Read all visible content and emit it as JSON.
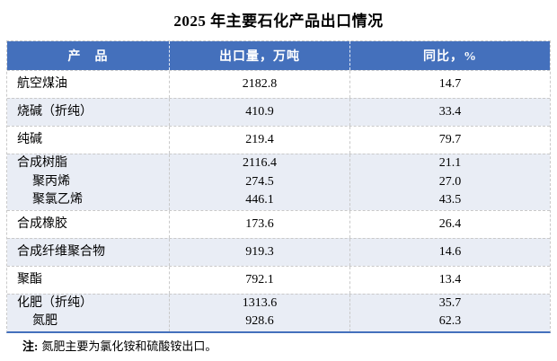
{
  "title": "2025 年主要石化产品出口情况",
  "colors": {
    "header_bg": "#4470BC",
    "header_text": "#FFFFFF",
    "accent_blue": "#4470BC",
    "band_bg": "#E9EDF5",
    "border_gray": "#C9C9C9",
    "body_text": "#000000"
  },
  "table": {
    "headers": [
      "产　品",
      "出口量，万吨",
      "同比，%"
    ],
    "rows": [
      {
        "band": false,
        "lines": [
          {
            "product": "航空煤油",
            "indent": false,
            "volume": "2182.8",
            "yoy": "14.7"
          }
        ]
      },
      {
        "band": true,
        "lines": [
          {
            "product": "烧碱（折纯）",
            "indent": false,
            "volume": "410.9",
            "yoy": "33.4"
          }
        ]
      },
      {
        "band": false,
        "lines": [
          {
            "product": "纯碱",
            "indent": false,
            "volume": "219.4",
            "yoy": "79.7"
          }
        ]
      },
      {
        "band": true,
        "lines": [
          {
            "product": "合成树脂",
            "indent": false,
            "volume": "2116.4",
            "yoy": "21.1"
          },
          {
            "product": "聚丙烯",
            "indent": true,
            "volume": "274.5",
            "yoy": "27.0"
          },
          {
            "product": "聚氯乙烯",
            "indent": true,
            "volume": "446.1",
            "yoy": "43.5"
          }
        ]
      },
      {
        "band": false,
        "lines": [
          {
            "product": "合成橡胶",
            "indent": false,
            "volume": "173.6",
            "yoy": "26.4"
          }
        ]
      },
      {
        "band": true,
        "lines": [
          {
            "product": "合成纤维聚合物",
            "indent": false,
            "volume": "919.3",
            "yoy": "14.6"
          }
        ]
      },
      {
        "band": false,
        "lines": [
          {
            "product": "聚酯",
            "indent": false,
            "volume": "792.1",
            "yoy": "13.4"
          }
        ]
      },
      {
        "band": true,
        "lines": [
          {
            "product": "化肥（折纯）",
            "indent": false,
            "volume": "1313.6",
            "yoy": "35.7"
          },
          {
            "product": "氮肥",
            "indent": true,
            "volume": "928.6",
            "yoy": "62.3"
          }
        ]
      }
    ]
  },
  "note": {
    "prefix": "注:",
    "text": "氮肥主要为氯化铵和硫酸铵出口。"
  }
}
